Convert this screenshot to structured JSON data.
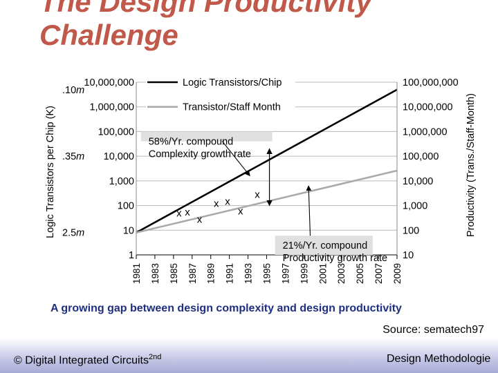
{
  "slide": {
    "title_line1": "The Design Productivity",
    "title_line2": "Challenge",
    "caption": "A growing gap between design complexity and design productivity",
    "source": "Source: sematech97",
    "footer_left": "© Digital Integrated Circuits",
    "footer_left_sup": "2nd",
    "footer_right": "Design Methodologie",
    "colors": {
      "title": "#c0594a",
      "caption": "#1f2f80",
      "footer": "#a7aad6"
    }
  },
  "chart_data": {
    "type": "line",
    "ylabel": "Logic Transistors per Chip (K)",
    "y2label": "Productivity (Trans./Staff-Month)",
    "x_ticks": [
      "1981",
      "1983",
      "1985",
      "1987",
      "1989",
      "1991",
      "1993",
      "1995",
      "1997",
      "1999",
      "2001",
      "2003",
      "2005",
      "2007",
      "2009"
    ],
    "xlim": [
      1981,
      2009
    ],
    "y_log": true,
    "ylim": [
      1,
      10000000
    ],
    "y_ticks": [
      "1",
      "10",
      "100",
      "1,000",
      "10,000",
      "100,000",
      "1,000,000",
      "10,000,000"
    ],
    "y2_ticks": [
      "10",
      "100",
      "1,000",
      "10,000",
      "100,000",
      "1,000,000",
      "10,000,000",
      "100,000,000"
    ],
    "geometry_labels": [
      {
        "label": ".10m",
        "y": 5000000
      },
      {
        "label": ".35m",
        "y": 10000
      },
      {
        "label": "2.5m",
        "y": 8
      }
    ],
    "series": [
      {
        "name": "Logic Transistors/Chip",
        "color": "#000000",
        "points": [
          [
            1981,
            8
          ],
          [
            2009,
            5000000
          ]
        ]
      },
      {
        "name": "Transistor/Staff Month",
        "color": "#aaaaaa",
        "points": [
          [
            1981,
            8
          ],
          [
            2009,
            2600
          ]
        ]
      }
    ],
    "markers": [
      {
        "label": "x",
        "x": 1985.6,
        "y": 50
      },
      {
        "label": "x",
        "x": 1986.5,
        "y": 55
      },
      {
        "label": "x",
        "x": 1987.8,
        "y": 28
      },
      {
        "label": "x",
        "x": 1989.6,
        "y": 120
      },
      {
        "label": "x",
        "x": 1990.8,
        "y": 150
      },
      {
        "label": "x",
        "x": 1992.2,
        "y": 60
      },
      {
        "label": "x",
        "x": 1994.0,
        "y": 280
      }
    ],
    "annotations": [
      {
        "line1": "58%/Yr. compound",
        "line2": "Complexity growth rate",
        "box_y": [
          40000,
          100000
        ],
        "x": [
          1981.5,
          1995.6
        ],
        "arrow_to": [
          1993.2,
          1600
        ]
      },
      {
        "line1": "21%/Yr. compound",
        "line2": "Productivity growth rate",
        "box_y": [
          1,
          6
        ],
        "x": [
          1995.9,
          2006.4
        ],
        "arrow_to": [
          1999.5,
          630
        ]
      }
    ],
    "gap_arrow": {
      "x": 1995.3,
      "y_top": 20000,
      "y_bottom": 100
    },
    "legend": "top-left",
    "grid": true
  }
}
